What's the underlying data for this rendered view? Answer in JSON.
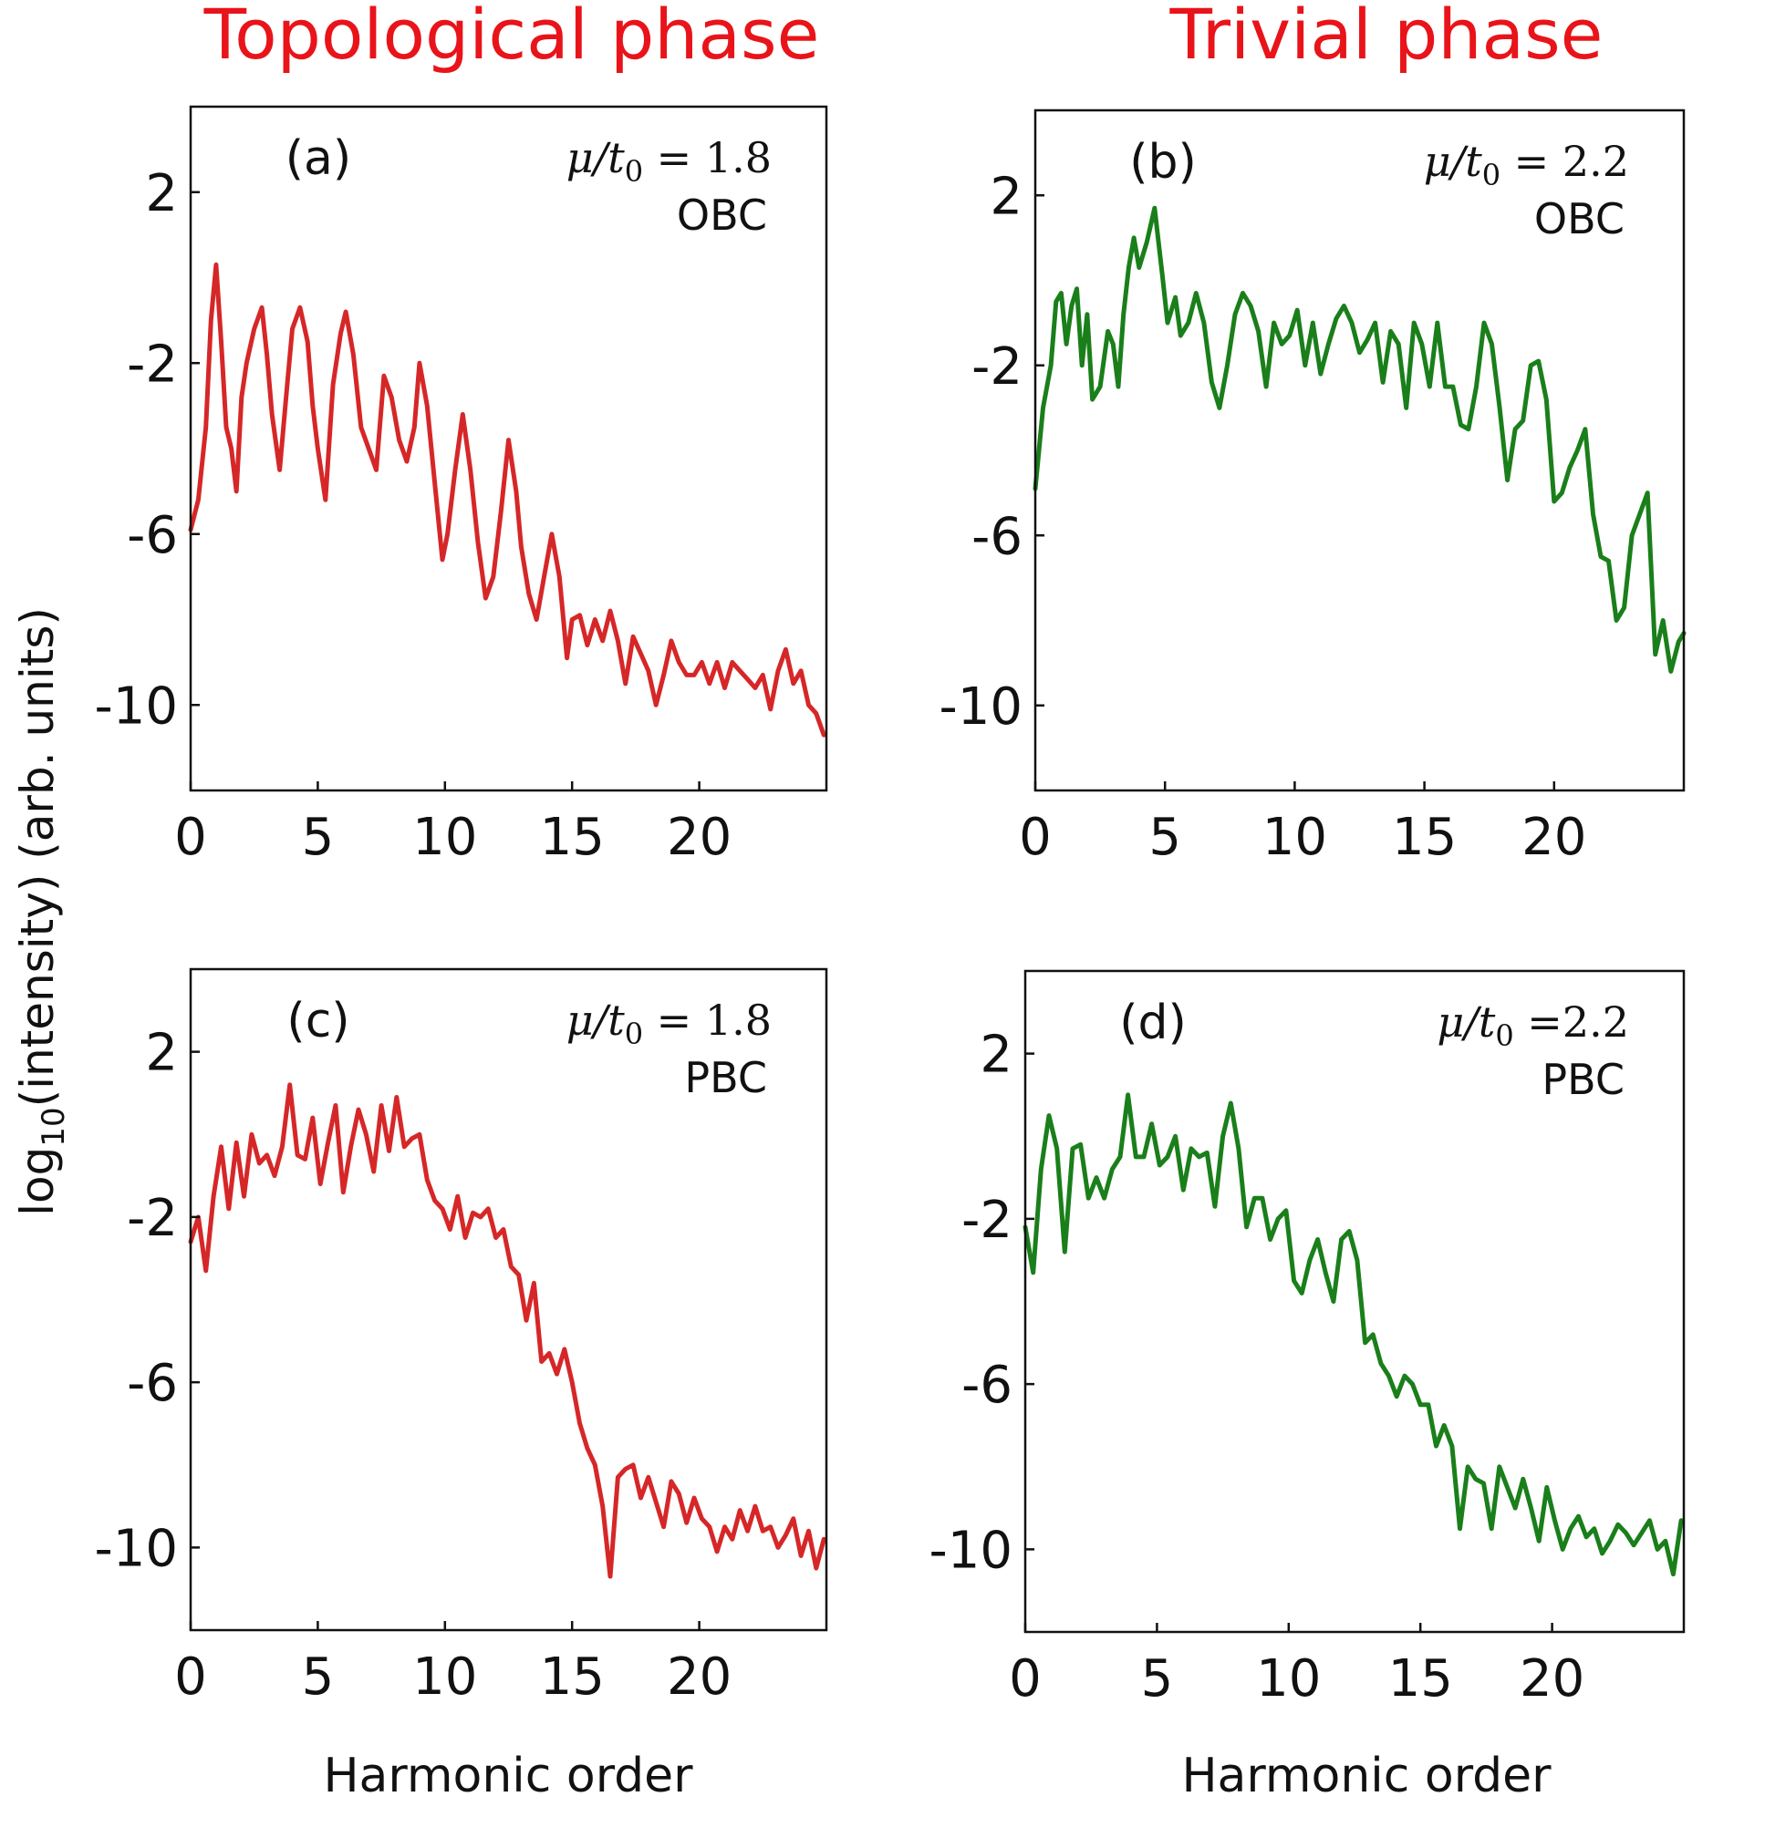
{
  "figure": {
    "column_titles": [
      "Topological phase",
      "Trivial phase"
    ],
    "column_title_color": "#e8141a",
    "ylabel_main": "log",
    "ylabel_sub": "10",
    "ylabel_rest": "(intensity) (arb. units)",
    "xlabel": "Harmonic order"
  },
  "chart_data": [
    {
      "type": "line",
      "panel_label": "(a)",
      "param_lhs": "μ/t",
      "param_sub": "0",
      "param_rhs": "= 1.8",
      "boundary": "OBC",
      "color": "#d62728",
      "xlim": [
        0,
        25
      ],
      "ylim": [
        -12,
        4
      ],
      "xticks": [
        0,
        5,
        10,
        15,
        20
      ],
      "yticks": [
        2,
        -2,
        -6,
        -10
      ],
      "xtick_labels": [
        "0",
        "5",
        "10",
        "15",
        "20"
      ],
      "ytick_labels": [
        "2",
        "-2",
        "-6",
        "-10"
      ],
      "series": [
        {
          "x": [
            0,
            0.3,
            0.6,
            0.8,
            1.0,
            1.2,
            1.4,
            1.6,
            1.8,
            2.0,
            2.2,
            2.5,
            2.8,
            3.0,
            3.2,
            3.5,
            3.8,
            4.0,
            4.3,
            4.6,
            4.8,
            5.0,
            5.3,
            5.6,
            5.9,
            6.1,
            6.4,
            6.7,
            7.0,
            7.3,
            7.6,
            7.9,
            8.2,
            8.5,
            8.8,
            9.0,
            9.3,
            9.6,
            9.9,
            10.1,
            10.4,
            10.7,
            11.0,
            11.3,
            11.6,
            11.9,
            12.2,
            12.5,
            12.8,
            13.0,
            13.3,
            13.6,
            13.9,
            14.2,
            14.5,
            14.8,
            15.0,
            15.3,
            15.6,
            15.9,
            16.2,
            16.5,
            16.8,
            17.1,
            17.4,
            17.7,
            18.0,
            18.3,
            18.6,
            18.9,
            19.2,
            19.5,
            19.8,
            20.1,
            20.4,
            20.7,
            21.0,
            21.3,
            21.6,
            21.9,
            22.2,
            22.5,
            22.8,
            23.1,
            23.4,
            23.7,
            24.0,
            24.3,
            24.6,
            24.9
          ],
          "values": [
            -5.9,
            -5.2,
            -3.5,
            -1.0,
            0.3,
            -1.5,
            -3.5,
            -4.0,
            -5.0,
            -2.8,
            -2.0,
            -1.2,
            -0.7,
            -1.8,
            -3.2,
            -4.5,
            -2.5,
            -1.2,
            -0.7,
            -1.5,
            -3.0,
            -4.0,
            -5.2,
            -2.5,
            -1.3,
            -0.8,
            -1.8,
            -3.5,
            -4.0,
            -4.5,
            -2.3,
            -2.8,
            -3.8,
            -4.3,
            -3.5,
            -2.0,
            -3.0,
            -4.8,
            -6.6,
            -6.0,
            -4.5,
            -3.2,
            -4.5,
            -6.2,
            -7.5,
            -7.0,
            -5.5,
            -3.8,
            -5.0,
            -6.3,
            -7.4,
            -8.0,
            -7.0,
            -6.0,
            -7.0,
            -8.9,
            -8.0,
            -7.9,
            -8.6,
            -8.0,
            -8.5,
            -7.8,
            -8.5,
            -9.5,
            -8.4,
            -8.8,
            -9.2,
            -10.0,
            -9.3,
            -8.5,
            -9.0,
            -9.3,
            -9.3,
            -9.0,
            -9.5,
            -9.0,
            -9.6,
            -9.0,
            -9.2,
            -9.4,
            -9.6,
            -9.3,
            -10.1,
            -9.2,
            -8.7,
            -9.5,
            -9.2,
            -10.0,
            -10.2,
            -10.7
          ]
        }
      ]
    },
    {
      "type": "line",
      "panel_label": "(b)",
      "param_lhs": "μ/t",
      "param_sub": "0",
      "param_rhs": "= 2.2",
      "boundary": "OBC",
      "color": "#1a7f1a",
      "xlim": [
        0,
        25
      ],
      "ylim": [
        -12,
        4
      ],
      "xticks": [
        0,
        5,
        10,
        15,
        20
      ],
      "yticks": [
        2,
        -2,
        -6,
        -10
      ],
      "xtick_labels": [
        "0",
        "5",
        "10",
        "15",
        "20"
      ],
      "ytick_labels": [
        "2",
        "-2",
        "-6",
        "-10"
      ],
      "series": [
        {
          "x": [
            0,
            0.3,
            0.6,
            0.8,
            1.0,
            1.2,
            1.4,
            1.6,
            1.8,
            2.0,
            2.2,
            2.5,
            2.8,
            3.0,
            3.2,
            3.4,
            3.6,
            3.8,
            4.0,
            4.3,
            4.6,
            4.9,
            5.1,
            5.4,
            5.6,
            5.9,
            6.2,
            6.5,
            6.8,
            7.1,
            7.4,
            7.7,
            8.0,
            8.3,
            8.6,
            8.9,
            9.2,
            9.5,
            9.8,
            10.1,
            10.4,
            10.7,
            11.0,
            11.3,
            11.6,
            11.9,
            12.2,
            12.5,
            12.8,
            13.1,
            13.4,
            13.7,
            14.0,
            14.3,
            14.6,
            14.9,
            15.2,
            15.5,
            15.8,
            16.1,
            16.4,
            16.7,
            17.0,
            17.3,
            17.6,
            17.9,
            18.2,
            18.5,
            18.8,
            19.1,
            19.4,
            19.7,
            20.0,
            20.3,
            20.6,
            20.9,
            21.2,
            21.5,
            21.8,
            22.1,
            22.4,
            22.7,
            23.0,
            23.3,
            23.6,
            23.9,
            24.2,
            24.5,
            24.8,
            25.0
          ],
          "values": [
            -4.9,
            -3.0,
            -2.0,
            -0.5,
            -0.3,
            -1.5,
            -0.6,
            -0.2,
            -2.0,
            -0.8,
            -2.8,
            -2.5,
            -1.2,
            -1.5,
            -2.5,
            -0.8,
            0.3,
            1.0,
            0.3,
            0.9,
            1.7,
            0.1,
            -1.0,
            -0.4,
            -1.3,
            -1.0,
            -0.3,
            -1.0,
            -2.4,
            -3.0,
            -2.0,
            -0.8,
            -0.3,
            -0.6,
            -1.2,
            -2.5,
            -1.0,
            -1.5,
            -1.3,
            -0.7,
            -2.0,
            -1.0,
            -2.2,
            -1.5,
            -0.9,
            -0.6,
            -1.0,
            -1.7,
            -1.4,
            -1.0,
            -2.4,
            -1.2,
            -1.5,
            -3.0,
            -1.0,
            -1.5,
            -2.5,
            -1.0,
            -2.5,
            -2.5,
            -3.4,
            -3.5,
            -2.5,
            -1.0,
            -1.5,
            -3.0,
            -4.7,
            -3.5,
            -3.3,
            -2.0,
            -1.9,
            -2.8,
            -5.2,
            -5.0,
            -4.4,
            -4.0,
            -3.5,
            -5.5,
            -6.5,
            -6.6,
            -8.0,
            -7.7,
            -6.0,
            -5.5,
            -5.0,
            -8.8,
            -8.0,
            -9.2,
            -8.5,
            -8.3
          ]
        }
      ]
    },
    {
      "type": "line",
      "panel_label": "(c)",
      "param_lhs": "μ/t",
      "param_sub": "0",
      "param_rhs": "= 1.8",
      "boundary": "PBC",
      "color": "#d62728",
      "xlim": [
        0,
        25
      ],
      "ylim": [
        -12,
        4
      ],
      "xticks": [
        0,
        5,
        10,
        15,
        20
      ],
      "yticks": [
        2,
        -2,
        -6,
        -10
      ],
      "xtick_labels": [
        "0",
        "5",
        "10",
        "15",
        "20"
      ],
      "ytick_labels": [
        "2",
        "-2",
        "-6",
        "-10"
      ],
      "series": [
        {
          "x": [
            0,
            0.3,
            0.6,
            0.9,
            1.2,
            1.5,
            1.8,
            2.1,
            2.4,
            2.7,
            3.0,
            3.3,
            3.6,
            3.9,
            4.2,
            4.5,
            4.8,
            5.1,
            5.4,
            5.7,
            6.0,
            6.3,
            6.6,
            6.9,
            7.2,
            7.5,
            7.8,
            8.1,
            8.4,
            8.7,
            9.0,
            9.3,
            9.6,
            9.9,
            10.2,
            10.5,
            10.8,
            11.1,
            11.4,
            11.7,
            12.0,
            12.3,
            12.6,
            12.9,
            13.2,
            13.5,
            13.8,
            14.1,
            14.4,
            14.7,
            15.0,
            15.3,
            15.6,
            15.9,
            16.2,
            16.5,
            16.8,
            17.1,
            17.4,
            17.7,
            18.0,
            18.3,
            18.6,
            18.9,
            19.2,
            19.5,
            19.8,
            20.1,
            20.4,
            20.7,
            21.0,
            21.3,
            21.6,
            21.9,
            22.2,
            22.5,
            22.8,
            23.1,
            23.4,
            23.7,
            24.0,
            24.3,
            24.6,
            24.9
          ],
          "values": [
            -2.6,
            -2.0,
            -3.3,
            -1.5,
            -0.3,
            -1.8,
            -0.2,
            -1.5,
            0.0,
            -0.7,
            -0.5,
            -1.0,
            -0.3,
            1.2,
            -0.5,
            -0.6,
            0.4,
            -1.2,
            -0.2,
            0.7,
            -1.4,
            -0.3,
            0.6,
            0.0,
            -0.9,
            0.7,
            -0.4,
            0.9,
            -0.3,
            -0.1,
            0.0,
            -1.1,
            -1.6,
            -1.8,
            -2.3,
            -1.5,
            -2.5,
            -1.9,
            -2.0,
            -1.8,
            -2.5,
            -2.3,
            -3.2,
            -3.4,
            -4.5,
            -3.6,
            -5.5,
            -5.3,
            -5.8,
            -5.2,
            -6.0,
            -7.0,
            -7.6,
            -8.0,
            -9.0,
            -10.7,
            -8.3,
            -8.1,
            -8.0,
            -8.8,
            -8.3,
            -8.9,
            -9.5,
            -8.4,
            -8.7,
            -9.4,
            -8.8,
            -9.3,
            -9.5,
            -10.1,
            -9.5,
            -9.8,
            -9.1,
            -9.6,
            -9.0,
            -9.6,
            -9.5,
            -10.0,
            -9.7,
            -9.3,
            -10.2,
            -9.6,
            -10.5,
            -9.8
          ]
        }
      ]
    },
    {
      "type": "line",
      "panel_label": "(d)",
      "param_lhs": "μ/t",
      "param_sub": "0",
      "param_rhs": "=2.2",
      "boundary": "PBC",
      "color": "#1a7f1a",
      "xlim": [
        0,
        25
      ],
      "ylim": [
        -12,
        4
      ],
      "xticks": [
        0,
        5,
        10,
        15,
        20
      ],
      "yticks": [
        2,
        -2,
        -6,
        -10
      ],
      "xtick_labels": [
        "0",
        "5",
        "10",
        "15",
        "20"
      ],
      "ytick_labels": [
        "2",
        "-2",
        "-6",
        "-10"
      ],
      "series": [
        {
          "x": [
            0,
            0.3,
            0.6,
            0.9,
            1.2,
            1.5,
            1.8,
            2.1,
            2.4,
            2.7,
            3.0,
            3.3,
            3.6,
            3.9,
            4.2,
            4.5,
            4.8,
            5.1,
            5.4,
            5.7,
            6.0,
            6.3,
            6.6,
            6.9,
            7.2,
            7.5,
            7.8,
            8.1,
            8.4,
            8.7,
            9.0,
            9.3,
            9.6,
            9.9,
            10.2,
            10.5,
            10.8,
            11.1,
            11.4,
            11.7,
            12.0,
            12.3,
            12.6,
            12.9,
            13.2,
            13.5,
            13.8,
            14.1,
            14.4,
            14.7,
            15.0,
            15.3,
            15.6,
            15.9,
            16.2,
            16.5,
            16.8,
            17.1,
            17.4,
            17.7,
            18.0,
            18.3,
            18.6,
            18.9,
            19.2,
            19.5,
            19.8,
            20.1,
            20.4,
            20.7,
            21.0,
            21.3,
            21.6,
            21.9,
            22.2,
            22.5,
            22.8,
            23.1,
            23.4,
            23.7,
            24.0,
            24.3,
            24.6,
            24.9
          ],
          "values": [
            -2.2,
            -3.3,
            -0.8,
            0.5,
            -0.3,
            -2.8,
            -0.3,
            -0.2,
            -1.5,
            -1.0,
            -1.5,
            -0.8,
            -0.5,
            1.0,
            -0.5,
            -0.5,
            0.3,
            -0.7,
            -0.5,
            0.0,
            -1.3,
            -0.3,
            -0.5,
            -0.4,
            -1.7,
            0.0,
            0.8,
            -0.3,
            -2.2,
            -1.5,
            -1.5,
            -2.5,
            -2.0,
            -1.8,
            -3.5,
            -3.8,
            -3.0,
            -2.5,
            -3.3,
            -4.0,
            -2.5,
            -2.3,
            -3.0,
            -5.0,
            -4.8,
            -5.5,
            -5.8,
            -6.3,
            -5.8,
            -6.0,
            -6.5,
            -6.5,
            -7.5,
            -7.0,
            -7.5,
            -9.5,
            -8.0,
            -8.3,
            -8.4,
            -9.5,
            -8.0,
            -8.5,
            -9.0,
            -8.3,
            -9.0,
            -9.8,
            -8.5,
            -9.3,
            -10.0,
            -9.5,
            -9.2,
            -9.7,
            -9.5,
            -10.1,
            -9.8,
            -9.4,
            -9.6,
            -9.9,
            -9.6,
            -9.3,
            -10.0,
            -9.8,
            -10.6,
            -9.3
          ]
        }
      ]
    }
  ]
}
